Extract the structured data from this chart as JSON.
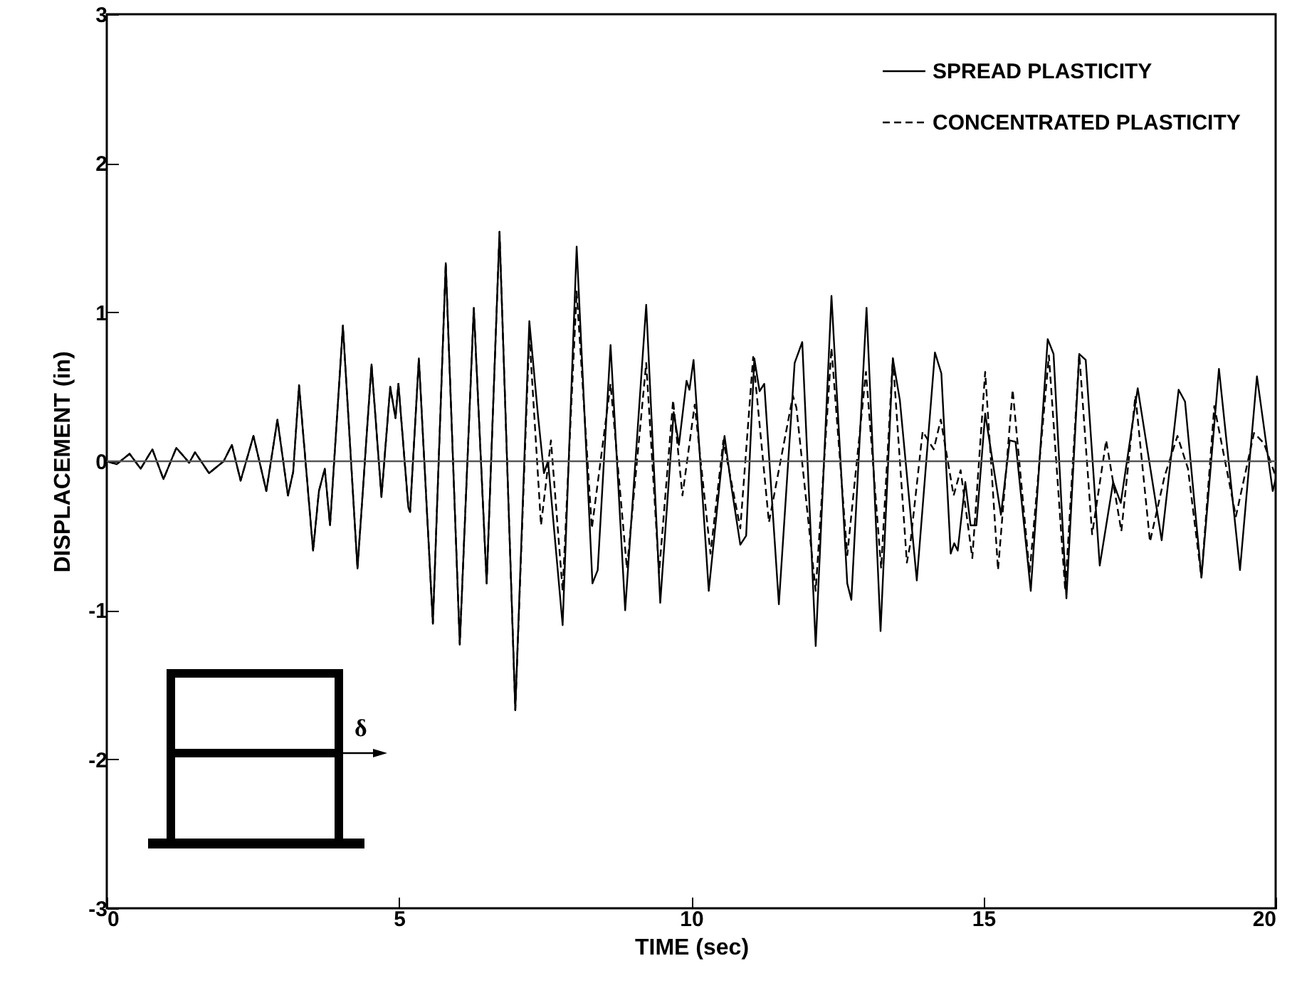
{
  "chart_data": {
    "type": "line",
    "xlabel": "TIME (sec)",
    "ylabel": "DISPLACEMENT (in)",
    "xlim": [
      0,
      20
    ],
    "xticks": [
      0,
      5,
      10,
      15,
      20
    ],
    "ylim": [
      -3,
      3
    ],
    "yticks": [
      -3,
      -2,
      -1,
      0,
      1,
      2,
      3
    ],
    "legend": "top right",
    "marker": "none",
    "grid": false,
    "annotations": [
      "δ"
    ],
    "ref_lines": [
      {
        "axis": "y",
        "value": 0,
        "color": "#555555"
      }
    ],
    "series": [
      {
        "name": "SPREAD PLASTICITY",
        "color": "#000000",
        "line_style": "solid",
        "x": [
          0,
          0.17,
          0.39,
          0.58,
          0.78,
          0.97,
          1.19,
          1.41,
          1.51,
          1.75,
          2.0,
          2.14,
          2.29,
          2.51,
          2.73,
          2.92,
          3.1,
          3.19,
          3.29,
          3.53,
          3.63,
          3.73,
          3.82,
          4.04,
          4.29,
          4.53,
          4.7,
          4.85,
          4.94,
          4.99,
          5.16,
          5.19,
          5.34,
          5.58,
          5.8,
          6.04,
          6.28,
          6.5,
          6.72,
          6.99,
          7.23,
          7.38,
          7.48,
          7.55,
          7.8,
          8.04,
          8.31,
          8.4,
          8.62,
          8.87,
          9.23,
          9.47,
          9.7,
          9.79,
          9.92,
          9.97,
          10.04,
          10.3,
          10.57,
          10.68,
          10.84,
          10.94,
          11.08,
          11.17,
          11.25,
          11.5,
          11.77,
          11.9,
          12.13,
          12.4,
          12.67,
          12.74,
          13.0,
          13.24,
          13.45,
          13.57,
          13.86,
          14.17,
          14.28,
          14.44,
          14.5,
          14.56,
          14.69,
          14.78,
          14.88,
          15.03,
          15.3,
          15.45,
          15.55,
          15.81,
          16.1,
          16.2,
          16.42,
          16.64,
          16.75,
          16.99,
          17.22,
          17.35,
          17.64,
          18.05,
          18.34,
          18.45,
          18.73,
          19.03,
          19.39,
          19.68,
          19.95,
          20.0
        ],
        "values": [
          0,
          -0.02,
          0.05,
          -0.05,
          0.08,
          -0.12,
          0.09,
          -0.01,
          0.06,
          -0.08,
          0,
          0.11,
          -0.13,
          0.17,
          -0.2,
          0.28,
          -0.23,
          -0.07,
          0.51,
          -0.6,
          -0.2,
          -0.05,
          -0.43,
          0.91,
          -0.72,
          0.65,
          -0.24,
          0.5,
          0.29,
          0.52,
          -0.31,
          -0.34,
          0.69,
          -1.09,
          1.33,
          -1.23,
          1.03,
          -0.82,
          1.54,
          -1.67,
          0.94,
          0.3,
          -0.08,
          0.0,
          -1.1,
          1.44,
          -0.82,
          -0.73,
          0.78,
          -1.0,
          1.05,
          -0.95,
          0.33,
          0.11,
          0.54,
          0.48,
          0.68,
          -0.87,
          0.17,
          -0.15,
          -0.56,
          -0.5,
          0.69,
          0.47,
          0.52,
          -0.96,
          0.66,
          0.8,
          -1.24,
          1.11,
          -0.82,
          -0.93,
          1.03,
          -1.14,
          0.69,
          0.41,
          -0.8,
          0.73,
          0.59,
          -0.62,
          -0.55,
          -0.6,
          -0.14,
          -0.43,
          -0.43,
          0.32,
          -0.36,
          0.14,
          0.13,
          -0.87,
          0.82,
          0.72,
          -0.92,
          0.72,
          0.68,
          -0.7,
          -0.14,
          -0.28,
          0.49,
          -0.53,
          0.48,
          0.4,
          -0.78,
          0.62,
          -0.73,
          0.57,
          -0.2,
          -0.12
        ]
      },
      {
        "name": "CONCENTRATED PLASTICITY",
        "color": "#000000",
        "line_style": "dashed",
        "x": [
          0,
          0.17,
          0.39,
          0.58,
          0.78,
          0.97,
          1.19,
          1.41,
          1.51,
          1.75,
          2.0,
          2.14,
          2.29,
          2.51,
          2.73,
          2.92,
          3.1,
          3.19,
          3.29,
          3.53,
          3.63,
          3.73,
          3.82,
          4.04,
          4.29,
          4.53,
          4.7,
          4.85,
          4.94,
          4.99,
          5.16,
          5.19,
          5.34,
          5.58,
          5.8,
          6.04,
          6.28,
          6.5,
          6.72,
          6.99,
          7.23,
          7.43,
          7.6,
          7.8,
          8.04,
          8.3,
          8.62,
          8.9,
          9.23,
          9.45,
          9.69,
          9.85,
          10.06,
          10.33,
          10.55,
          10.84,
          11.06,
          11.33,
          11.74,
          11.8,
          12.13,
          12.4,
          12.67,
          12.99,
          13.25,
          13.45,
          13.69,
          13.75,
          13.96,
          14.15,
          14.27,
          14.49,
          14.61,
          14.81,
          15.03,
          15.25,
          15.5,
          15.79,
          16.12,
          16.4,
          16.64,
          16.86,
          17.1,
          17.36,
          17.6,
          17.85,
          18.1,
          18.32,
          18.5,
          18.73,
          18.95,
          19.32,
          19.63,
          19.8,
          20.0
        ],
        "values": [
          0,
          -0.02,
          0.05,
          -0.05,
          0.08,
          -0.12,
          0.09,
          -0.01,
          0.06,
          -0.08,
          0,
          0.11,
          -0.13,
          0.17,
          -0.2,
          0.28,
          -0.23,
          -0.07,
          0.51,
          -0.6,
          -0.2,
          -0.05,
          -0.43,
          0.91,
          -0.72,
          0.65,
          -0.24,
          0.5,
          0.29,
          0.52,
          -0.31,
          -0.34,
          0.69,
          -1.09,
          1.33,
          -1.23,
          1.03,
          -0.82,
          1.54,
          -1.67,
          0.85,
          -0.43,
          0.14,
          -0.87,
          1.14,
          -0.45,
          0.52,
          -0.72,
          0.66,
          -0.75,
          0.41,
          -0.23,
          0.38,
          -0.62,
          0.14,
          -0.45,
          0.7,
          -0.41,
          0.44,
          0.36,
          -0.87,
          0.76,
          -0.63,
          0.6,
          -0.72,
          0.69,
          -0.68,
          -0.55,
          0.2,
          0.08,
          0.28,
          -0.23,
          -0.06,
          -0.65,
          0.6,
          -0.73,
          0.48,
          -0.75,
          0.71,
          -0.87,
          0.72,
          -0.49,
          0.14,
          -0.47,
          0.44,
          -0.54,
          -0.1,
          0.17,
          -0.05,
          -0.78,
          0.37,
          -0.37,
          0.19,
          0.12,
          -0.1
        ]
      }
    ]
  }
}
